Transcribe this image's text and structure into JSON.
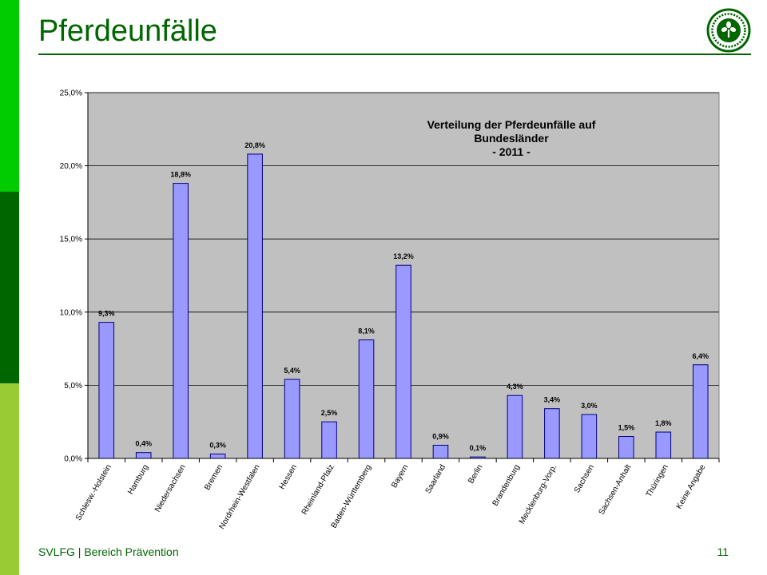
{
  "slide": {
    "title": "Pferdeunfälle",
    "footer": "SVLFG | Bereich Prävention",
    "page_number": "11"
  },
  "colors": {
    "band_top": "#00cc00",
    "band_mid": "#006600",
    "band_bottom": "#99cc33",
    "title": "#006600",
    "plot_background": "#c0c0c0",
    "bar_fill": "#9999ff",
    "bar_stroke": "#000080"
  },
  "logo": {
    "icon": "svlfg-tree-logo-icon"
  },
  "chart_data": {
    "type": "bar",
    "title_lines": [
      "Verteilung der Pferdeunfälle auf",
      "Bundesländer",
      "- 2011 -"
    ],
    "categories": [
      "Schlesw.-Holstein",
      "Hamburg",
      "Niedersachsen",
      "Bremen",
      "Nordrhein-Westfalen",
      "Hessen",
      "Rheinland-Pfalz",
      "Baden-Württemberg",
      "Bayern",
      "Saarland",
      "Berlin",
      "Brandenburg",
      "Mecklenburg-Vorp.",
      "Sachsen",
      "Sachsen-Anhalt",
      "Thüringen",
      "Keine Angabe"
    ],
    "values": [
      9.3,
      0.4,
      18.8,
      0.3,
      20.8,
      5.4,
      2.5,
      8.1,
      13.2,
      0.9,
      0.1,
      4.3,
      3.4,
      3.0,
      1.5,
      1.8,
      6.4
    ],
    "data_labels": [
      "9,3%",
      "0,4%",
      "18,8%",
      "0,3%",
      "20,8%",
      "5,4%",
      "2,5%",
      "8,1%",
      "13,2%",
      "0,9%",
      "0,1%",
      "4,3%",
      "3,4%",
      "3,0%",
      "1,5%",
      "1,8%",
      "6,4%"
    ],
    "y_ticks": [
      0,
      5,
      10,
      15,
      20,
      25
    ],
    "y_tick_labels": [
      "0,0%",
      "5,0%",
      "10,0%",
      "15,0%",
      "20,0%",
      "25,0%"
    ],
    "ylim": [
      0,
      25
    ],
    "xlabel": "",
    "ylabel": "",
    "grid": true,
    "legend": "none"
  }
}
